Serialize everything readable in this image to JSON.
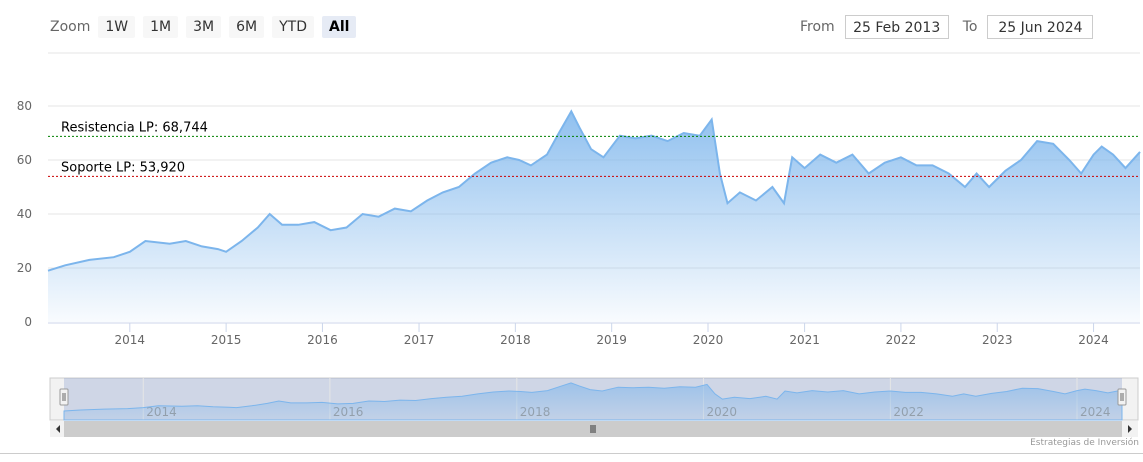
{
  "zoom": {
    "label": "Zoom",
    "buttons": [
      "1W",
      "1M",
      "3M",
      "6M",
      "YTD",
      "All"
    ],
    "active": "All"
  },
  "range": {
    "from_label": "From",
    "from_value": "25 Feb 2013",
    "to_label": "To",
    "to_value": "25 Jun 2024"
  },
  "colors": {
    "series": "#7cb5ec",
    "resistance": "#008000",
    "support": "#cc0000",
    "grid": "#e6e6e6"
  },
  "credits": "Estrategias de Inversión",
  "chart_data": {
    "type": "area",
    "title": "",
    "xlabel": "",
    "ylabel": "",
    "ylim": [
      0,
      80
    ],
    "yticks": [
      0,
      20,
      40,
      60,
      80
    ],
    "xlim": [
      "2013-02-25",
      "2024-06-25"
    ],
    "xticks": [
      "2014",
      "2015",
      "2016",
      "2017",
      "2018",
      "2019",
      "2020",
      "2021",
      "2022",
      "2023",
      "2024"
    ],
    "navigator_ticks": [
      "2014",
      "2016",
      "2018",
      "2020",
      "2022",
      "2024"
    ],
    "grid": true,
    "legend": "none",
    "series": [
      {
        "x": [
          "2013-02-25",
          "2013-05-01",
          "2013-08-01",
          "2013-11-01",
          "2014-01-01",
          "2014-03-01",
          "2014-06-01",
          "2014-08-01",
          "2014-10-01",
          "2014-12-01",
          "2015-01-01",
          "2015-03-01",
          "2015-05-01",
          "2015-06-15",
          "2015-08-01",
          "2015-10-01",
          "2015-12-01",
          "2016-02-01",
          "2016-04-01",
          "2016-06-01",
          "2016-08-01",
          "2016-10-01",
          "2016-12-01",
          "2017-02-01",
          "2017-04-01",
          "2017-06-01",
          "2017-08-01",
          "2017-10-01",
          "2017-12-01",
          "2018-01-15",
          "2018-03-01",
          "2018-05-01",
          "2018-06-15",
          "2018-08-01",
          "2018-09-01",
          "2018-10-15",
          "2018-12-01",
          "2019-02-01",
          "2019-04-01",
          "2019-06-01",
          "2019-08-01",
          "2019-10-01",
          "2019-12-01",
          "2020-01-15",
          "2020-02-15",
          "2020-03-15",
          "2020-05-01",
          "2020-07-01",
          "2020-09-01",
          "2020-10-15",
          "2020-11-15",
          "2021-01-01",
          "2021-03-01",
          "2021-05-01",
          "2021-07-01",
          "2021-09-01",
          "2021-11-01",
          "2022-01-01",
          "2022-03-01",
          "2022-05-01",
          "2022-07-01",
          "2022-09-01",
          "2022-10-15",
          "2022-12-01",
          "2023-02-01",
          "2023-04-01",
          "2023-06-01",
          "2023-08-01",
          "2023-10-01",
          "2023-11-15",
          "2024-01-01",
          "2024-02-01",
          "2024-03-15",
          "2024-05-01",
          "2024-06-25"
        ],
        "values": [
          19,
          21,
          23,
          24,
          26,
          30,
          29,
          30,
          28,
          27,
          26,
          30,
          35,
          40,
          36,
          36,
          37,
          34,
          35,
          40,
          39,
          42,
          41,
          45,
          48,
          50,
          55,
          59,
          61,
          60,
          58,
          62,
          70,
          78,
          72,
          64,
          61,
          69,
          68,
          69,
          67,
          70,
          69,
          75,
          55,
          44,
          48,
          45,
          50,
          44,
          61,
          57,
          62,
          59,
          62,
          55,
          59,
          61,
          58,
          58,
          55,
          50,
          55,
          50,
          56,
          60,
          67,
          66,
          60,
          55,
          62,
          65,
          62,
          57,
          63
        ]
      }
    ],
    "annotations": [
      {
        "label": "Resistencia LP: 68,744",
        "value": 68.744
      },
      {
        "label": "Soporte LP: 53,920",
        "value": 53.92
      }
    ]
  }
}
